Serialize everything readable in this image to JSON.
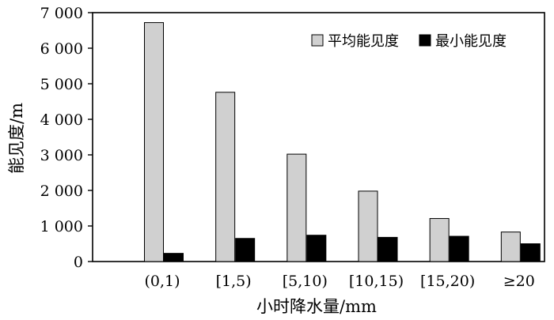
{
  "chart_data": {
    "type": "bar",
    "title": "",
    "xlabel": "小时降水量/mm",
    "ylabel": "能见度/m",
    "categories": [
      "(0,1)",
      "[1,5)",
      "[5,10)",
      "[10,15)",
      "[15,20)",
      "≥20"
    ],
    "series": [
      {
        "name": "平均能见度",
        "color": "#d0d0d0",
        "values": [
          6720,
          4760,
          3020,
          1980,
          1210,
          830
        ]
      },
      {
        "name": "最小能见度",
        "color": "#000000",
        "values": [
          230,
          650,
          740,
          680,
          710,
          500
        ]
      }
    ],
    "ylim": [
      0,
      7000
    ],
    "yticks": [
      0,
      1000,
      2000,
      3000,
      4000,
      5000,
      6000,
      7000
    ],
    "ytick_labels": [
      "0",
      "1 000",
      "2 000",
      "3 000",
      "4 000",
      "5 000",
      "6 000",
      "7 000"
    ],
    "grid": false,
    "legend_position": "top-right"
  }
}
